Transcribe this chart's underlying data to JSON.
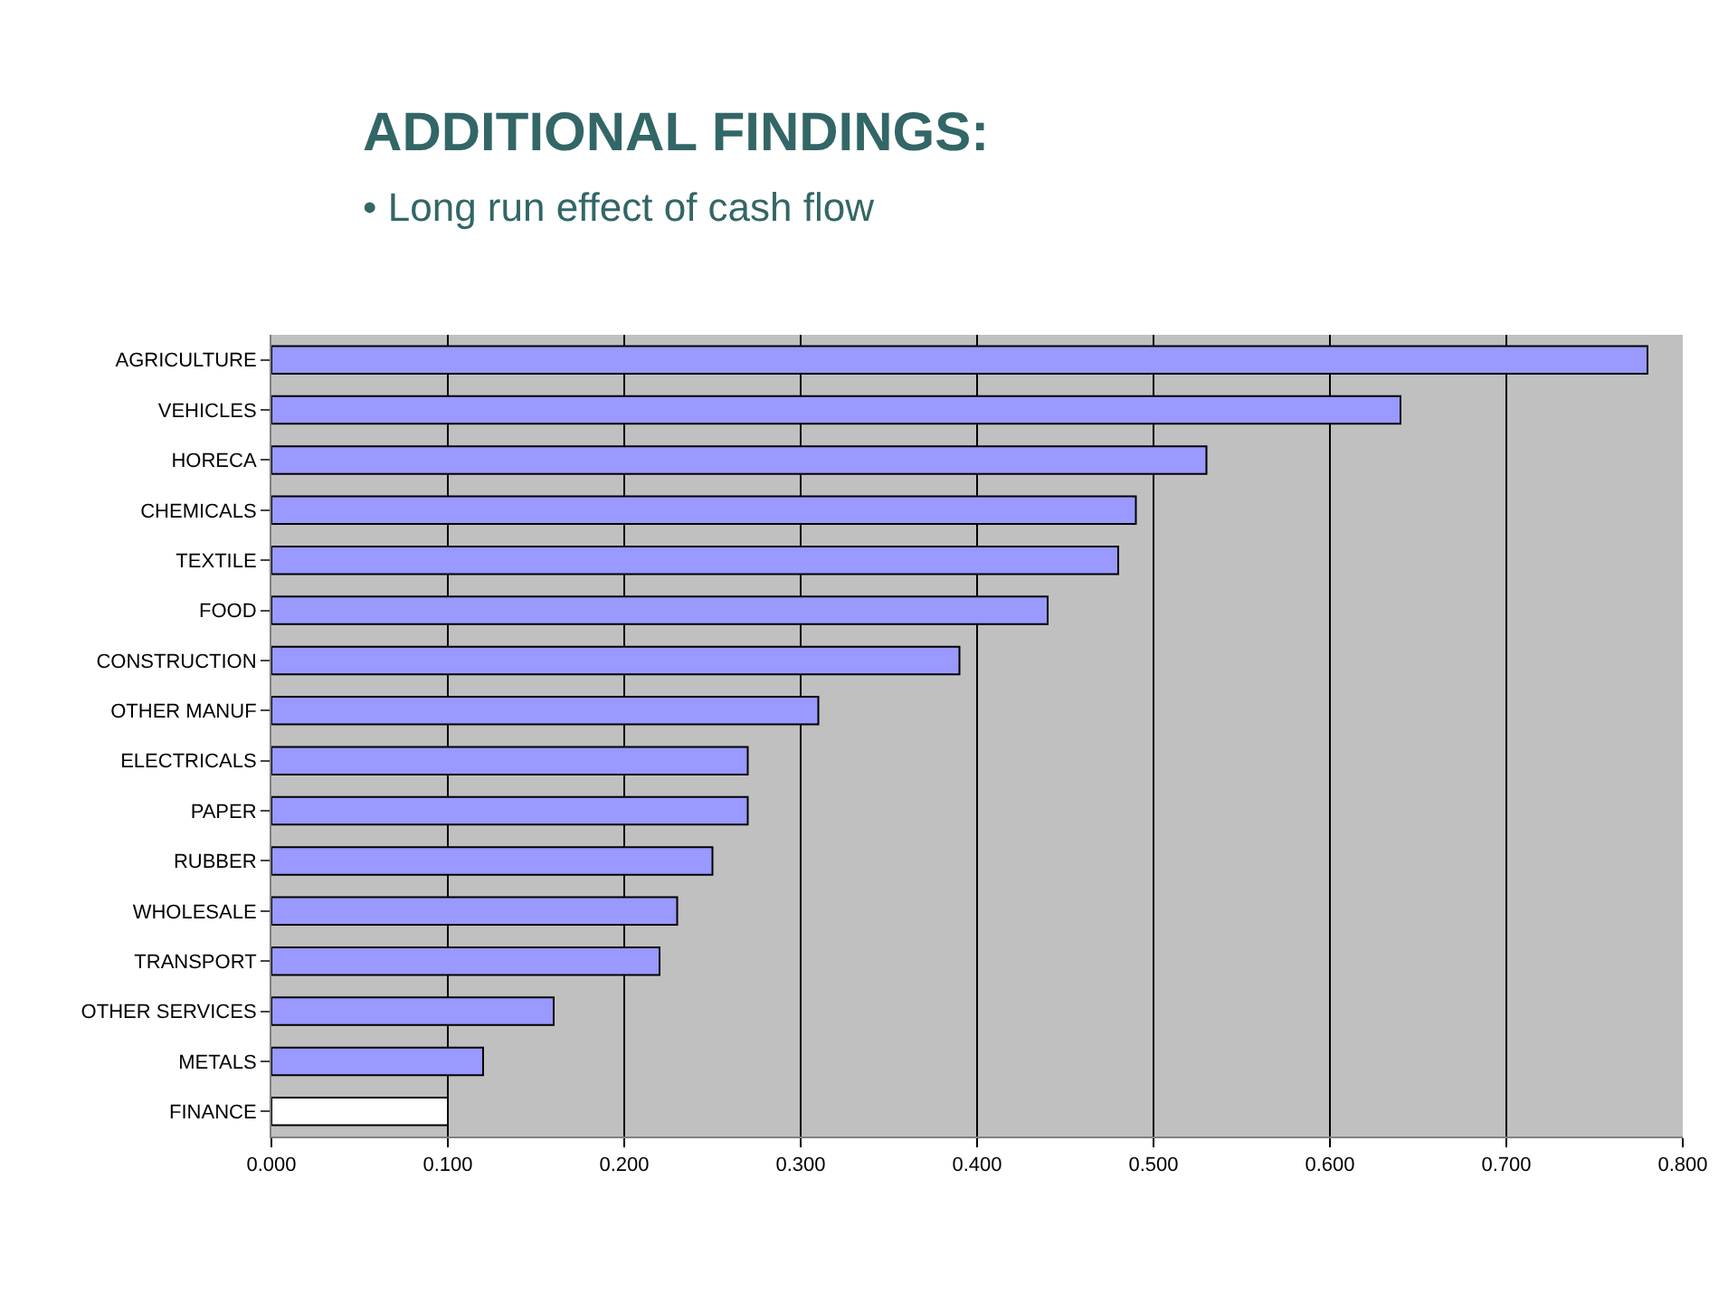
{
  "chart_data": {
    "type": "bar",
    "orientation": "horizontal",
    "title": "ADDITIONAL FINDINGS:",
    "subtitle": "• Long run effect of cash flow",
    "categories": [
      "AGRICULTURE",
      "VEHICLES",
      "HORECA",
      "CHEMICALS",
      "TEXTILE",
      "FOOD",
      "CONSTRUCTION",
      "OTHER MANUF",
      "ELECTRICALS",
      "PAPER",
      "RUBBER",
      "WHOLESALE",
      "TRANSPORT",
      "OTHER SERVICES",
      "METALS",
      "FINANCE"
    ],
    "values": [
      0.78,
      0.64,
      0.53,
      0.49,
      0.48,
      0.44,
      0.39,
      0.31,
      0.27,
      0.27,
      0.25,
      0.23,
      0.22,
      0.16,
      0.12,
      0.1
    ],
    "colors": [
      "#9999ff",
      "#9999ff",
      "#9999ff",
      "#9999ff",
      "#9999ff",
      "#9999ff",
      "#9999ff",
      "#9999ff",
      "#9999ff",
      "#9999ff",
      "#9999ff",
      "#9999ff",
      "#9999ff",
      "#9999ff",
      "#9999ff",
      "#ffffff"
    ],
    "xlim": [
      0,
      0.8
    ],
    "xticks": [
      {
        "value": 0,
        "label": "0.000"
      },
      {
        "value": 0.1,
        "label": "0.100"
      },
      {
        "value": 0.2,
        "label": "0.200"
      },
      {
        "value": 0.3,
        "label": "0.300"
      },
      {
        "value": 0.4,
        "label": "0.400"
      },
      {
        "value": 0.5,
        "label": "0.500"
      },
      {
        "value": 0.6,
        "label": "0.600"
      },
      {
        "value": 0.7,
        "label": "0.700"
      },
      {
        "value": 0.8,
        "label": "0.800"
      }
    ],
    "grid": "x"
  }
}
